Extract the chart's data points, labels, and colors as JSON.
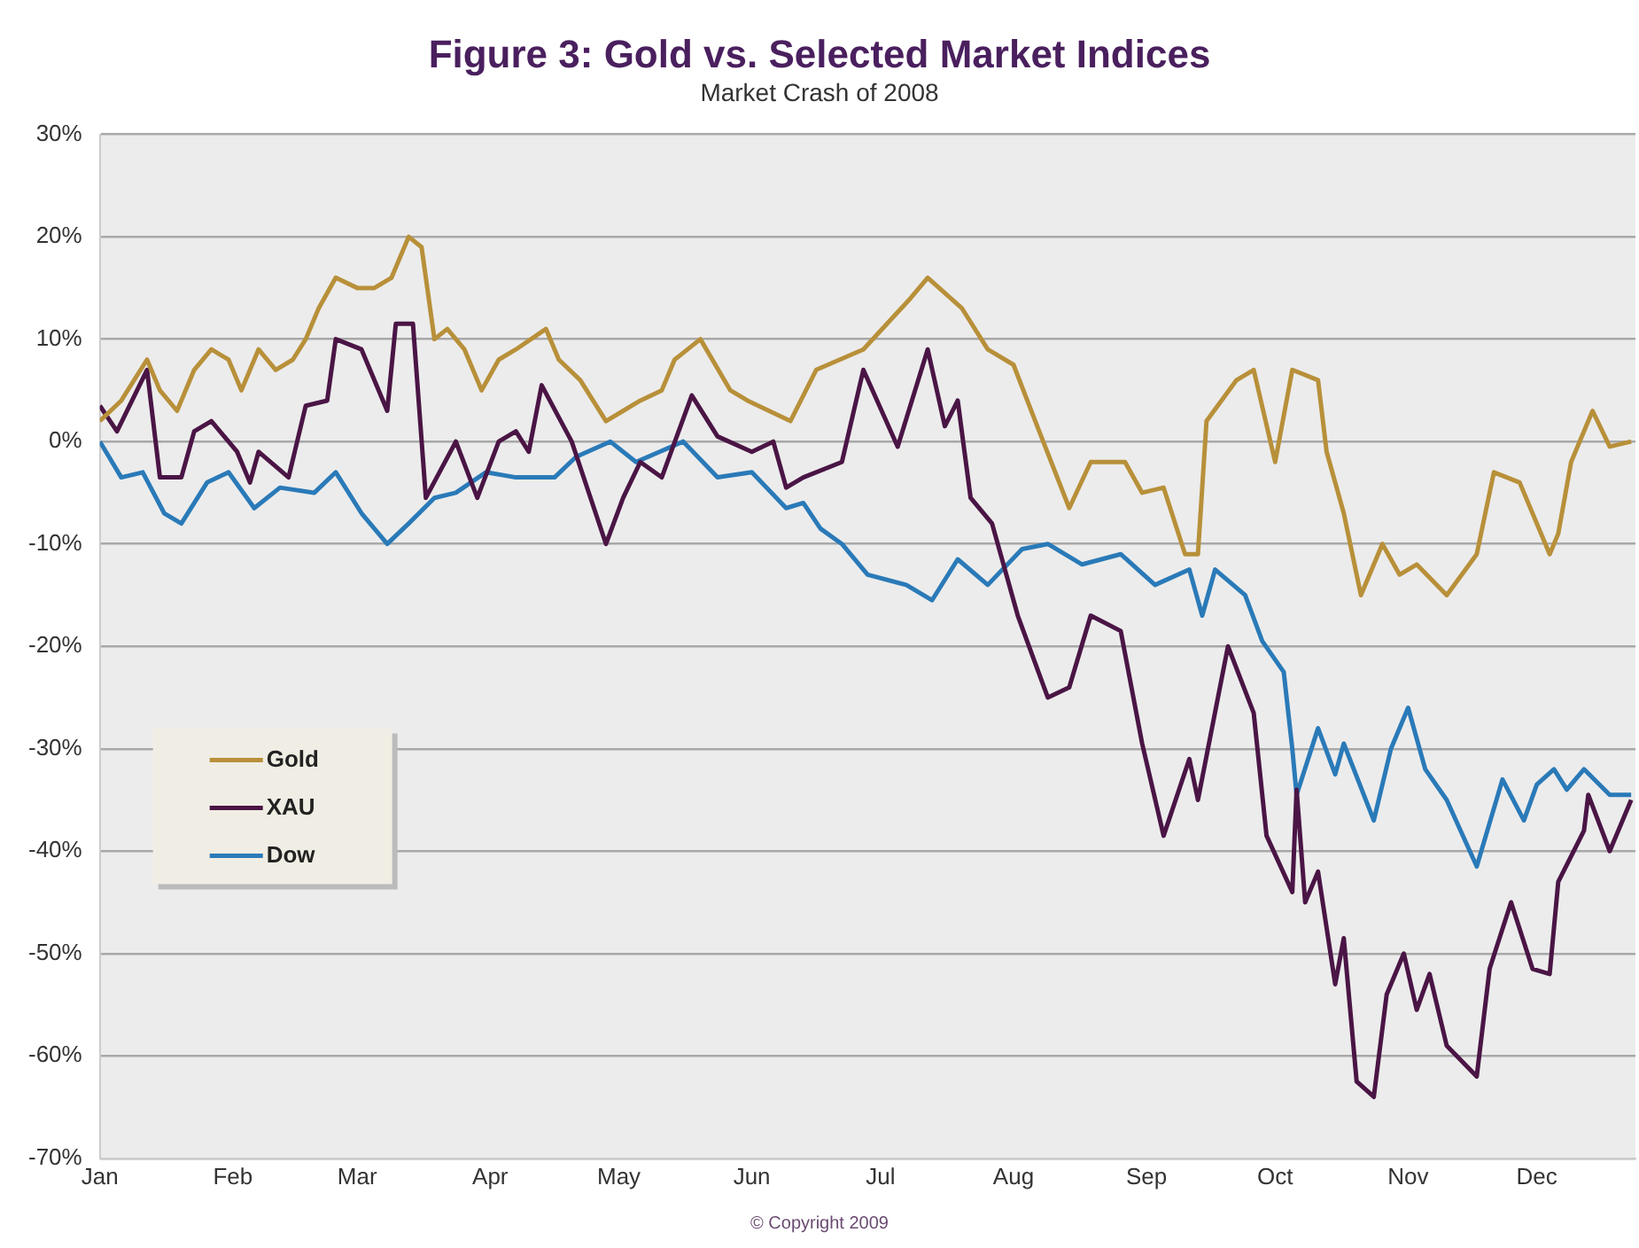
{
  "chart_data": {
    "type": "line",
    "title": "Figure 3: Gold vs. Selected Market Indices",
    "subtitle": "Market Crash of 2008",
    "annotations": [
      "© Copyright 2009"
    ],
    "xlim": [
      "--01-01",
      "--12-24"
    ],
    "xticks": [
      {
        "value": "--01-01",
        "label": "Jan"
      },
      {
        "value": "--02-01",
        "label": "Feb"
      },
      {
        "value": "--03-01",
        "label": "Mar"
      },
      {
        "value": "--04-01",
        "label": "Apr"
      },
      {
        "value": "--05-01",
        "label": "May"
      },
      {
        "value": "--06-01",
        "label": "Jun"
      },
      {
        "value": "--07-01",
        "label": "Jul"
      },
      {
        "value": "--08-01",
        "label": "Aug"
      },
      {
        "value": "--09-01",
        "label": "Sep"
      },
      {
        "value": "--10-01",
        "label": "Oct"
      },
      {
        "value": "--11-01",
        "label": "Nov"
      },
      {
        "value": "--12-01",
        "label": "Dec"
      }
    ],
    "ylim": [
      -70,
      30
    ],
    "yticks": [
      {
        "value": -70,
        "label": "-70%"
      },
      {
        "value": -60,
        "label": "-60%"
      },
      {
        "value": -50,
        "label": "-50%"
      },
      {
        "value": -40,
        "label": "-40%"
      },
      {
        "value": -30,
        "label": "-30%"
      },
      {
        "value": -20,
        "label": "-20%"
      },
      {
        "value": -10,
        "label": "-10%"
      },
      {
        "value": 0,
        "label": "0%"
      },
      {
        "value": 10,
        "label": "10%"
      },
      {
        "value": 20,
        "label": "20%"
      },
      {
        "value": 30,
        "label": "30%"
      }
    ],
    "grid": "y",
    "legend": "left",
    "marker": "none",
    "line_style": "solid",
    "series": [
      {
        "name": "Gold",
        "color": "#b8903a",
        "x": [
          "--01-01",
          "--01-06",
          "--01-12",
          "--01-15",
          "--01-19",
          "--01-23",
          "--01-27",
          "--01-31",
          "--02-03",
          "--02-07",
          "--02-11",
          "--02-15",
          "--02-18",
          "--02-21",
          "--02-25",
          "--03-01",
          "--03-05",
          "--03-09",
          "--03-13",
          "--03-16",
          "--03-19",
          "--03-22",
          "--03-26",
          "--03-30",
          "--04-03",
          "--04-07",
          "--04-14",
          "--04-17",
          "--04-22",
          "--04-28",
          "--05-02",
          "--05-06",
          "--05-11",
          "--05-14",
          "--05-20",
          "--05-27",
          "--05-31",
          "--06-10",
          "--06-16",
          "--06-27",
          "--07-08",
          "--07-12",
          "--07-20",
          "--07-26",
          "--08-01",
          "--08-07",
          "--08-14",
          "--08-19",
          "--08-27",
          "--08-31",
          "--09-05",
          "--09-10",
          "--09-13",
          "--09-15",
          "--09-22",
          "--09-26",
          "--10-01",
          "--10-05",
          "--10-11",
          "--10-13",
          "--10-17",
          "--10-21",
          "--10-26",
          "--10-30",
          "--11-03",
          "--11-10",
          "--11-17",
          "--11-21",
          "--11-27",
          "--12-04",
          "--12-06",
          "--12-09",
          "--12-14",
          "--12-18",
          "--12-23"
        ],
        "values": [
          2,
          4,
          8,
          5,
          3,
          7,
          9,
          8,
          5,
          9,
          7,
          8,
          10,
          13,
          16,
          15,
          15,
          16,
          20,
          19,
          10,
          11,
          9,
          5,
          8,
          9,
          11,
          8,
          6,
          2,
          3,
          4,
          5,
          8,
          10,
          5,
          4,
          2,
          7,
          9,
          14,
          16,
          13,
          9,
          7.5,
          1,
          -6.5,
          -2,
          -2,
          -5,
          -4.5,
          -11,
          -11,
          2,
          6,
          7,
          -2,
          7,
          6,
          -1,
          -7,
          -15,
          -10,
          -13,
          -12,
          -15,
          -11,
          -3,
          -4,
          -11,
          -9,
          -2,
          3,
          -0.5,
          0
        ]
      },
      {
        "name": "XAU",
        "color": "#4a1545",
        "x": [
          "--01-01",
          "--01-05",
          "--01-12",
          "--01-15",
          "--01-20",
          "--01-23",
          "--01-27",
          "--02-02",
          "--02-05",
          "--02-07",
          "--02-14",
          "--02-18",
          "--02-23",
          "--02-25",
          "--03-02",
          "--03-08",
          "--03-10",
          "--03-14",
          "--03-17",
          "--03-24",
          "--03-29",
          "--04-03",
          "--04-07",
          "--04-10",
          "--04-13",
          "--04-20",
          "--04-24",
          "--04-28",
          "--05-02",
          "--05-06",
          "--05-11",
          "--05-18",
          "--05-24",
          "--06-01",
          "--06-06",
          "--06-09",
          "--06-13",
          "--06-22",
          "--06-27",
          "--07-05",
          "--07-12",
          "--07-16",
          "--07-19",
          "--07-22",
          "--07-27",
          "--08-02",
          "--08-09",
          "--08-14",
          "--08-19",
          "--08-26",
          "--08-31",
          "--09-05",
          "--09-11",
          "--09-13",
          "--09-20",
          "--09-26",
          "--09-29",
          "--10-05",
          "--10-06",
          "--10-08",
          "--10-11",
          "--10-15",
          "--10-17",
          "--10-20",
          "--10-24",
          "--10-27",
          "--10-31",
          "--11-03",
          "--11-06",
          "--11-10",
          "--11-17",
          "--11-20",
          "--11-25",
          "--11-30",
          "--12-04",
          "--12-06",
          "--12-12",
          "--12-13",
          "--12-18",
          "--12-23"
        ],
        "values": [
          3.5,
          1,
          7,
          -3.5,
          -3.5,
          1,
          2,
          -1,
          -4,
          -1,
          -3.5,
          3.5,
          4,
          10,
          9,
          3,
          11.5,
          11.5,
          -5.5,
          0,
          -5.5,
          0,
          1,
          -1,
          5.5,
          0,
          -5,
          -10,
          -5.5,
          -2,
          -3.5,
          4.5,
          0.5,
          -1,
          0,
          -4.5,
          -3.5,
          -2,
          7,
          -0.5,
          9,
          1.5,
          4,
          -5.5,
          -8,
          -17,
          -25,
          -24,
          -17,
          -18.5,
          -29.5,
          -38.5,
          -31,
          -35,
          -20,
          -26.5,
          -38.5,
          -44,
          -34,
          -45,
          -42,
          -53,
          -48.5,
          -62.5,
          -64,
          -54,
          -50,
          -55.5,
          -52,
          -59,
          -62,
          -51.5,
          -45,
          -51.5,
          -52,
          -43,
          -38,
          -34.5,
          -40,
          -35
        ]
      },
      {
        "name": "Dow",
        "color": "#2a7ab8",
        "x": [
          "--01-01",
          "--01-06",
          "--01-11",
          "--01-16",
          "--01-20",
          "--01-26",
          "--01-31",
          "--02-06",
          "--02-12",
          "--02-20",
          "--02-25",
          "--03-02",
          "--03-08",
          "--03-13",
          "--03-19",
          "--03-24",
          "--03-31",
          "--04-07",
          "--04-16",
          "--04-21",
          "--04-29",
          "--05-05",
          "--05-16",
          "--05-24",
          "--06-01",
          "--06-09",
          "--06-13",
          "--06-17",
          "--06-22",
          "--06-28",
          "--07-07",
          "--07-13",
          "--07-19",
          "--07-26",
          "--08-03",
          "--08-09",
          "--08-17",
          "--08-26",
          "--09-03",
          "--09-11",
          "--09-14",
          "--09-17",
          "--09-24",
          "--09-28",
          "--10-03",
          "--10-05",
          "--10-06",
          "--10-11",
          "--10-15",
          "--10-17",
          "--10-24",
          "--10-28",
          "--11-01",
          "--11-05",
          "--11-10",
          "--11-17",
          "--11-23",
          "--11-28",
          "--12-01",
          "--12-05",
          "--12-08",
          "--12-12",
          "--12-18",
          "--12-23"
        ],
        "values": [
          0,
          -3.5,
          -3,
          -7,
          -8,
          -4,
          -3,
          -6.5,
          -4.5,
          -5,
          -3,
          -7,
          -10,
          -8,
          -5.5,
          -5,
          -3,
          -3.5,
          -3.5,
          -1.5,
          0,
          -2,
          0,
          -3.5,
          -3,
          -6.5,
          -6,
          -8.5,
          -10,
          -13,
          -14,
          -15.5,
          -11.5,
          -14,
          -10.5,
          -10,
          -12,
          -11,
          -14,
          -12.5,
          -17,
          -12.5,
          -15,
          -19.5,
          -22.5,
          -30,
          -34.5,
          -28,
          -32.5,
          -29.5,
          -37,
          -30,
          -26,
          -32,
          -35,
          -41.5,
          -33,
          -37,
          -33.5,
          -32,
          -34,
          -32,
          -34.5,
          -34.5
        ]
      }
    ]
  }
}
